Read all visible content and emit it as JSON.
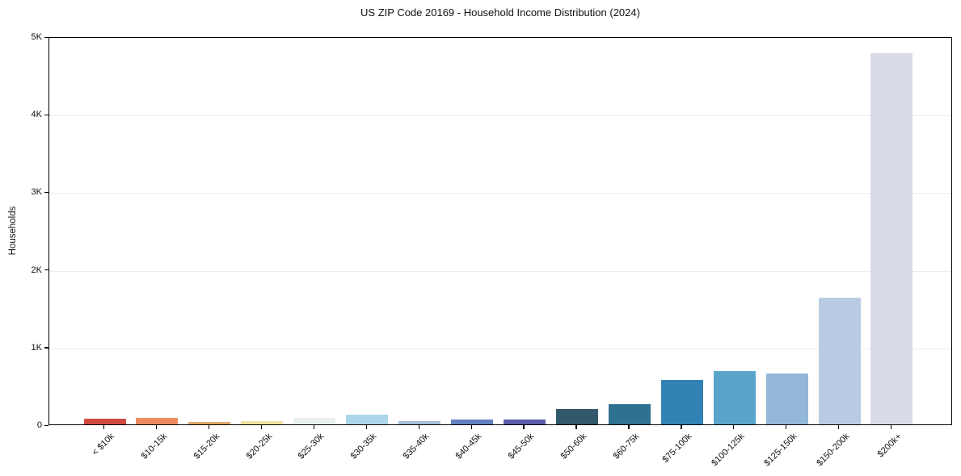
{
  "title": "US ZIP Code 20169 - Household Income Distribution (2024)",
  "chart_data": {
    "type": "bar",
    "title": "US ZIP Code 20169 - Household Income Distribution (2024)",
    "xlabel": "",
    "ylabel": "Households",
    "ylim": [
      0,
      5000
    ],
    "grid": true,
    "legend": "none",
    "yticks": {
      "values": [
        0,
        1000,
        2000,
        3000,
        4000,
        5000
      ],
      "labels": [
        "0",
        "1K",
        "2K",
        "3K",
        "4K",
        "5K"
      ]
    },
    "categories": [
      "< $10k",
      "$10-15k",
      "$15-20k",
      "$20-25k",
      "$25-30k",
      "$30-35k",
      "$35-40k",
      "$40-45k",
      "$45-50k",
      "$50-60k",
      "$60-75k",
      "$75-100k",
      "$100-125k",
      "$125-150k",
      "$150-200k",
      "$200k+"
    ],
    "values": [
      70,
      80,
      30,
      40,
      85,
      130,
      40,
      65,
      65,
      200,
      265,
      570,
      685,
      660,
      1635,
      4780
    ],
    "bar_colors": [
      "#d1493f",
      "#ee8a60",
      "#dda76c",
      "#f2e2a0",
      "#e8f1ef",
      "#abd5e8",
      "#a3bcd8",
      "#6081be",
      "#5a5ea8",
      "#32596b",
      "#2e7190",
      "#3382b5",
      "#5ba4c9",
      "#92b7d9",
      "#b9cbe3",
      "#d9dbe6"
    ]
  }
}
